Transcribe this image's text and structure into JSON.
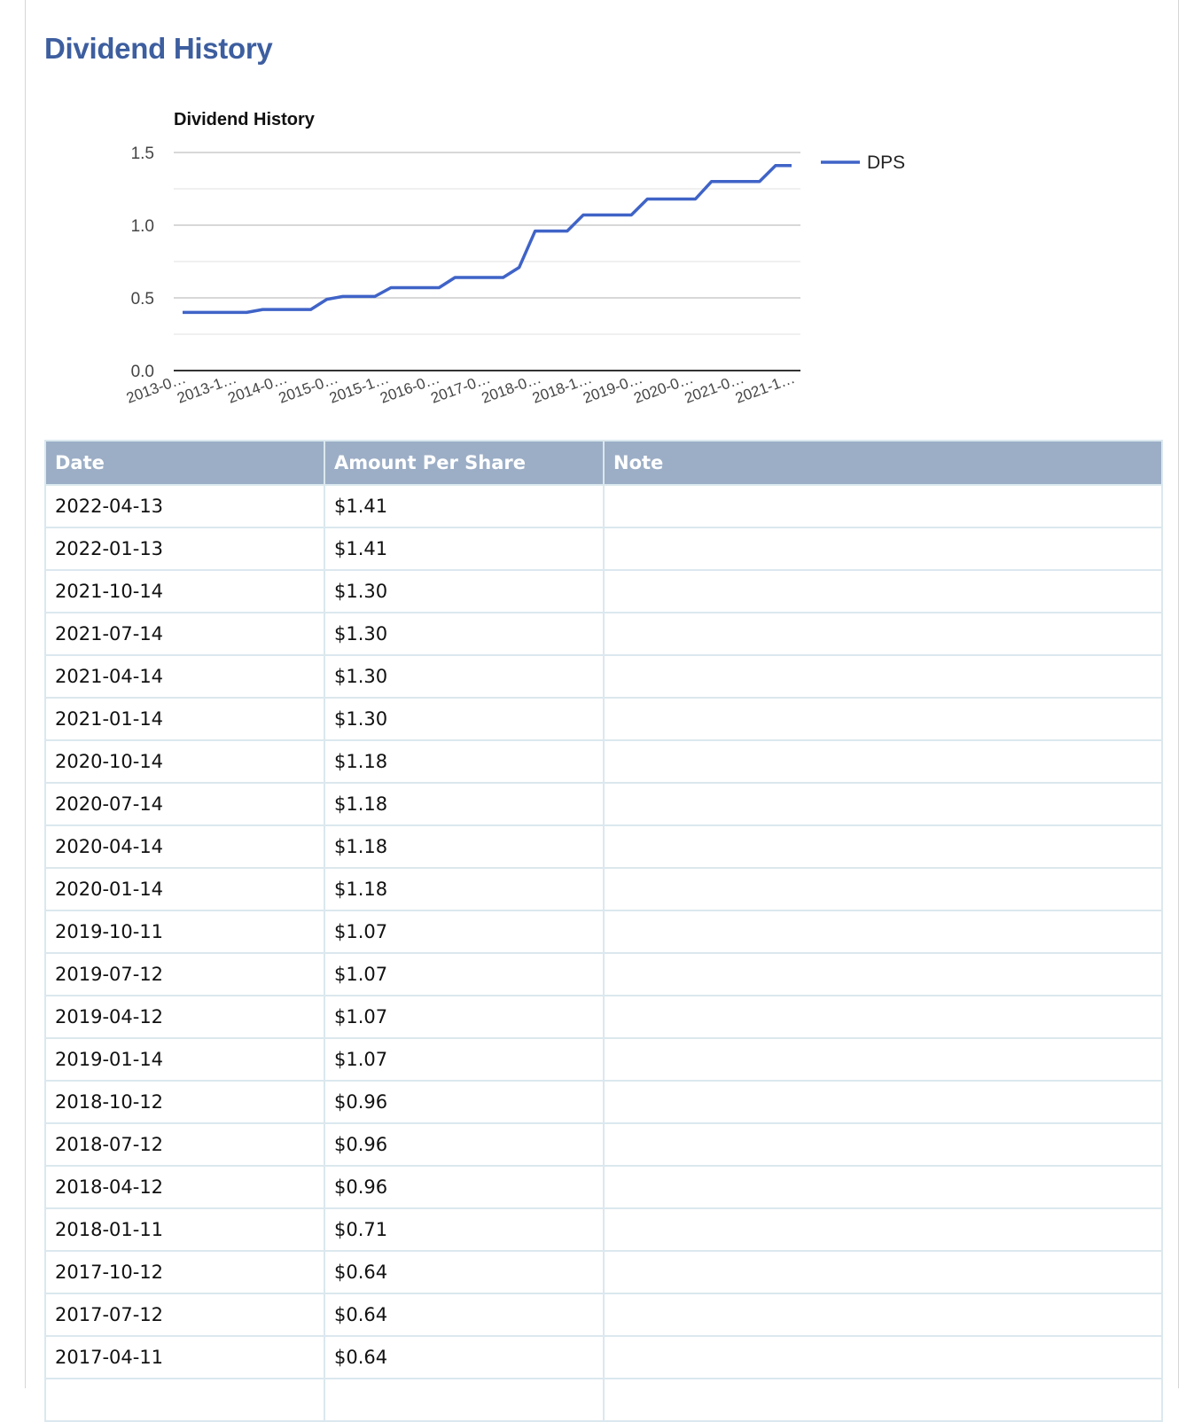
{
  "page": {
    "title": "Dividend History"
  },
  "chart_data": {
    "type": "line",
    "title": "Dividend History",
    "legend": "right",
    "grid": true,
    "ylim": [
      0,
      1.5
    ],
    "yticks": [
      "0.0",
      "0.5",
      "1.0",
      "1.5"
    ],
    "xtick_labels": [
      "2013-0…",
      "2013-1…",
      "2014-0…",
      "2015-0…",
      "2015-1…",
      "2016-0…",
      "2017-0…",
      "2018-0…",
      "2018-1…",
      "2019-0…",
      "2020-0…",
      "2021-0…",
      "2021-1…"
    ],
    "series": [
      {
        "name": "DPS",
        "color": "#3f63c7",
        "values": [
          0.4,
          0.4,
          0.4,
          0.4,
          0.4,
          0.42,
          0.42,
          0.42,
          0.42,
          0.49,
          0.51,
          0.51,
          0.51,
          0.57,
          0.57,
          0.57,
          0.57,
          0.64,
          0.64,
          0.64,
          0.64,
          0.71,
          0.96,
          0.96,
          0.96,
          1.07,
          1.07,
          1.07,
          1.07,
          1.18,
          1.18,
          1.18,
          1.18,
          1.3,
          1.3,
          1.3,
          1.3,
          1.41,
          1.41
        ]
      }
    ]
  },
  "table": {
    "headers": [
      "Date",
      "Amount Per Share",
      "Note"
    ],
    "rows": [
      [
        "2022-04-13",
        "$1.41",
        ""
      ],
      [
        "2022-01-13",
        "$1.41",
        ""
      ],
      [
        "2021-10-14",
        "$1.30",
        ""
      ],
      [
        "2021-07-14",
        "$1.30",
        ""
      ],
      [
        "2021-04-14",
        "$1.30",
        ""
      ],
      [
        "2021-01-14",
        "$1.30",
        ""
      ],
      [
        "2020-10-14",
        "$1.18",
        ""
      ],
      [
        "2020-07-14",
        "$1.18",
        ""
      ],
      [
        "2020-04-14",
        "$1.18",
        ""
      ],
      [
        "2020-01-14",
        "$1.18",
        ""
      ],
      [
        "2019-10-11",
        "$1.07",
        ""
      ],
      [
        "2019-07-12",
        "$1.07",
        ""
      ],
      [
        "2019-04-12",
        "$1.07",
        ""
      ],
      [
        "2019-01-14",
        "$1.07",
        ""
      ],
      [
        "2018-10-12",
        "$0.96",
        ""
      ],
      [
        "2018-07-12",
        "$0.96",
        ""
      ],
      [
        "2018-04-12",
        "$0.96",
        ""
      ],
      [
        "2018-01-11",
        "$0.71",
        ""
      ],
      [
        "2017-10-12",
        "$0.64",
        ""
      ],
      [
        "2017-07-12",
        "$0.64",
        ""
      ],
      [
        "2017-04-11",
        "$0.64",
        ""
      ],
      [
        "",
        "",
        ""
      ]
    ]
  }
}
